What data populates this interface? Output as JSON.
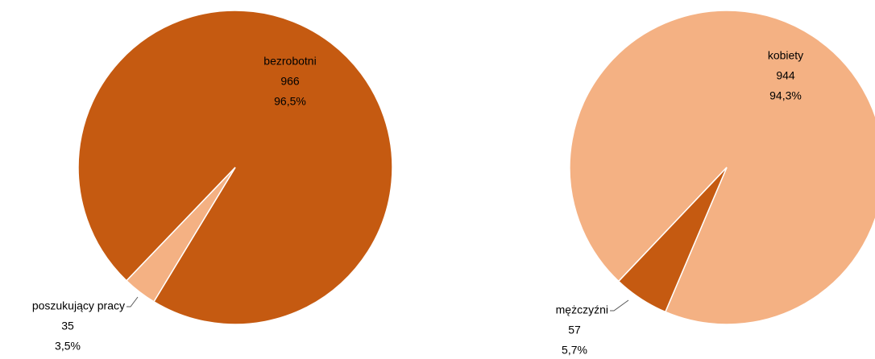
{
  "chart_data": [
    {
      "type": "pie",
      "categories": [
        "bezrobotni",
        "poszukujący pracy"
      ],
      "values": [
        966,
        35
      ],
      "percents": [
        96.5,
        3.5
      ],
      "percent_labels": [
        "96,5%",
        "3,5%"
      ],
      "colors": [
        "#c55a11",
        "#f4b183"
      ]
    },
    {
      "type": "pie",
      "categories": [
        "kobiety",
        "mężczyźni"
      ],
      "values": [
        944,
        57
      ],
      "percents": [
        94.3,
        5.7
      ],
      "percent_labels": [
        "94,3%",
        "5,7%"
      ],
      "colors": [
        "#f4b183",
        "#c55a11"
      ]
    }
  ]
}
